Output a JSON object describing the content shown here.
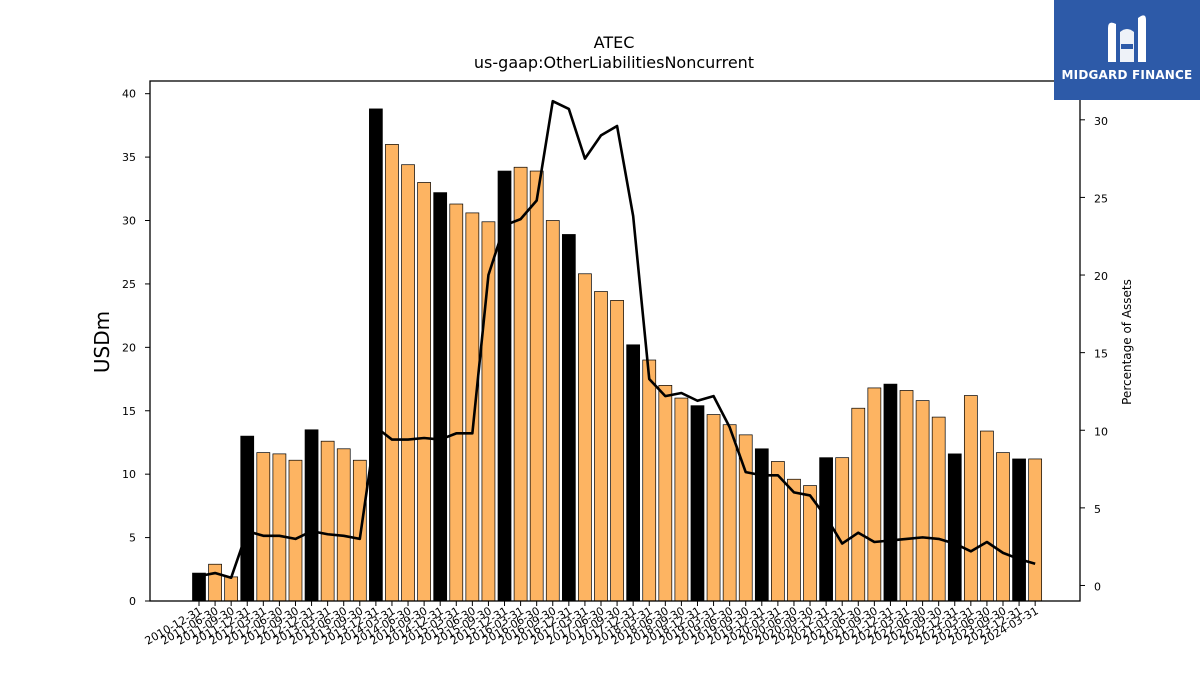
{
  "chart_data": {
    "type": "bar",
    "title": "ATEC",
    "subtitle": "us-gaap:OtherLiabilitiesNoncurrent",
    "ylabel": "USDm",
    "y2label": "Percentage of Assets",
    "ylim": [
      0,
      41
    ],
    "y2lim": [
      -1,
      32.5
    ],
    "yticks": [
      0,
      5,
      10,
      15,
      20,
      25,
      30,
      35,
      40
    ],
    "y2ticks": [
      0,
      5,
      10,
      15,
      20,
      25,
      30
    ],
    "categories": [
      "2010-12-31",
      "2011-06-30",
      "2011-09-30",
      "2011-12-31",
      "2012-03-31",
      "2012-06-30",
      "2012-09-30",
      "2012-12-31",
      "2013-03-31",
      "2013-06-30",
      "2013-09-30",
      "2013-12-31",
      "2014-03-31",
      "2014-06-30",
      "2014-09-30",
      "2014-12-31",
      "2015-03-31",
      "2015-06-30",
      "2015-09-30",
      "2015-12-31",
      "2016-03-31",
      "2016-06-30",
      "2016-09-30",
      "2016-12-31",
      "2017-03-31",
      "2017-06-30",
      "2017-09-30",
      "2017-12-31",
      "2018-03-31",
      "2018-06-30",
      "2018-09-30",
      "2018-12-31",
      "2019-03-31",
      "2019-06-30",
      "2019-09-30",
      "2019-12-31",
      "2020-03-31",
      "2020-06-30",
      "2020-09-30",
      "2020-12-31",
      "2021-03-31",
      "2021-06-30",
      "2021-09-30",
      "2021-12-31",
      "2022-03-31",
      "2022-06-30",
      "2022-09-30",
      "2022-12-31",
      "2023-03-31",
      "2023-06-30",
      "2023-09-30",
      "2023-12-31",
      "2024-03-31"
    ],
    "series": [
      {
        "kind": "bar",
        "values": [
          2.2,
          2.9,
          1.9,
          13.0,
          11.7,
          11.6,
          11.1,
          13.5,
          12.6,
          12.0,
          11.1,
          38.8,
          36.0,
          34.4,
          33.0,
          32.2,
          31.3,
          30.6,
          29.9,
          33.9,
          34.2,
          33.9,
          30.0,
          28.9,
          25.8,
          24.4,
          23.7,
          20.2,
          19.0,
          17.0,
          16.0,
          15.4,
          14.7,
          13.9,
          13.1,
          12.0,
          11.0,
          9.6,
          9.1,
          11.3,
          11.3,
          15.2,
          16.8,
          17.1,
          16.6,
          15.8,
          14.5,
          11.6,
          16.2,
          13.4,
          11.7,
          11.2,
          11.2
        ]
      },
      {
        "kind": "line",
        "axis": "right",
        "values": [
          0.6,
          0.8,
          0.5,
          3.5,
          3.2,
          3.2,
          3.0,
          3.5,
          3.3,
          3.2,
          3.0,
          10.2,
          9.4,
          9.4,
          9.5,
          9.4,
          9.8,
          9.8,
          20.0,
          23.2,
          23.6,
          24.8,
          31.2,
          30.7,
          27.5,
          29.0,
          29.6,
          23.8,
          13.3,
          12.2,
          12.4,
          11.9,
          12.2,
          10.2,
          7.3,
          7.1,
          7.1,
          6.0,
          5.8,
          4.4,
          2.7,
          3.4,
          2.8,
          2.9,
          3.0,
          3.1,
          3.0,
          2.7,
          2.2,
          2.8,
          2.1,
          1.7,
          1.4
        ]
      }
    ],
    "year_end_color": "#000000",
    "quarter_color": "#fdb462",
    "line_color": "#000000"
  },
  "logo": {
    "text": "MIDGARD FINANCE",
    "background": "#2d5aa8"
  }
}
